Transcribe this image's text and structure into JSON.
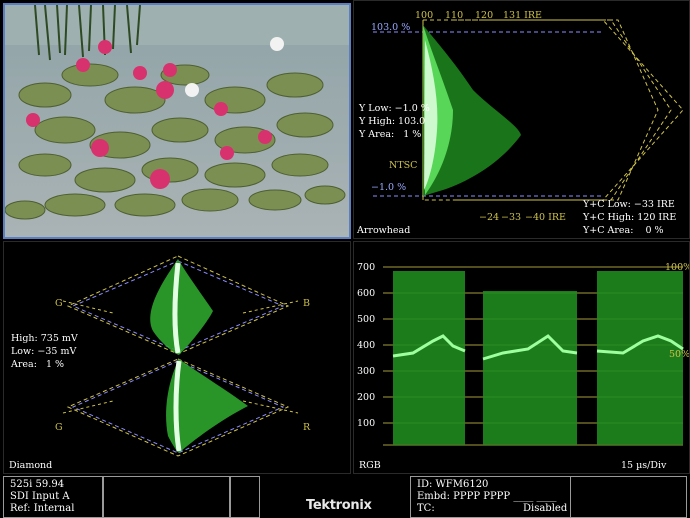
{
  "picture_pane": {
    "title": ""
  },
  "arrowhead": {
    "label": "Arrowhead",
    "ire_top": [
      "100",
      "110",
      "120",
      "131 IRE"
    ],
    "ire_bottom": [
      "−24",
      "−33",
      "−40 IRE"
    ],
    "pct_top": "103.0 %",
    "pct_bottom": "−1.0 %",
    "ntsc": "NTSC",
    "y_low": "Y Low: −1.0 %",
    "y_high": "Y High: 103.0",
    "y_area": "Y Area:   1 %",
    "yc_low": "Y+C Low: −33 IRE",
    "yc_high": "Y+C High: 120 IRE",
    "yc_area": "Y+C Area:    0 %"
  },
  "diamond": {
    "label": "Diamond",
    "g_top": "G",
    "b_top": "B",
    "g_bottom": "G",
    "r_bottom": "R",
    "high": "High: 735 mV",
    "low": "Low: −35 mV",
    "area": "Area:   1 %"
  },
  "rgb": {
    "label": "RGB",
    "timebase": "15 µs/Div",
    "ticks": [
      "700",
      "600",
      "500",
      "400",
      "300",
      "200",
      "100"
    ],
    "pct100": "100%",
    "pct50": "50%"
  },
  "status": {
    "format": "525i 59.94",
    "input": "SDI Input A",
    "ref": "Ref: Internal",
    "id": "ID: WFM6120",
    "embd": "Embd: PPPP PPPP ____ ____",
    "tc_label": "TC:",
    "tc_value": "Disabled",
    "brand": "Tektronix"
  },
  "colors": {
    "trace": "#2fd22f",
    "graticule": "#cfc24a",
    "dash": "#8c8cff",
    "border": "#5d7fc0"
  }
}
